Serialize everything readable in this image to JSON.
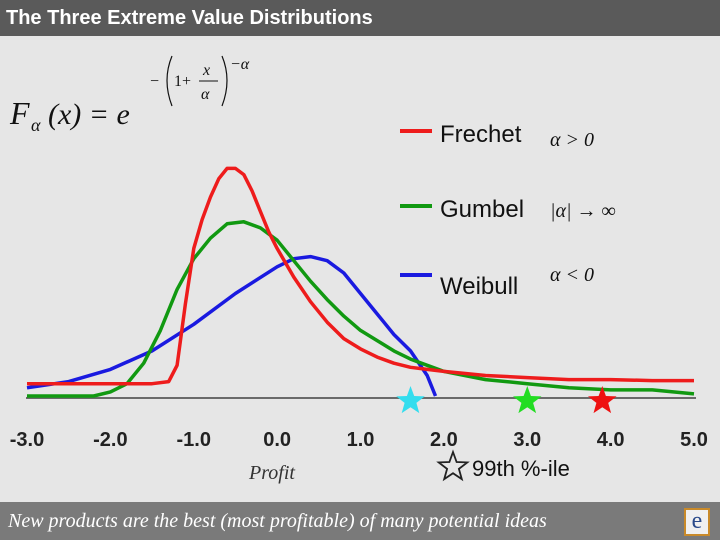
{
  "title": "The Three Extreme Value Distributions",
  "footer": {
    "text": "New products are the best (most profitable) of many potential ideas",
    "logo": "e"
  },
  "formula": {
    "lhs_main": "F",
    "lhs_sub": "α",
    "lhs_arg": "(x) = e",
    "exp_minus": "−",
    "exp_one_plus": "1+",
    "exp_frac_num": "x",
    "exp_frac_den": "α",
    "exp_power": "−α"
  },
  "colors": {
    "frechet": "#ee1c1c",
    "gumbel": "#119911",
    "weibull": "#1a1ae0",
    "star_weibull": "#33ddee",
    "star_gumbel": "#22dd22",
    "star_frechet": "#ee1111"
  },
  "chart_data": {
    "type": "line",
    "title": "The Three Extreme Value Distributions",
    "xlabel": "Profit",
    "ylabel": "",
    "xlim": [
      -3.2,
      5.2
    ],
    "x_ticks": [
      "-3.0",
      "-2.0",
      "-1.0",
      "0.0",
      "1.0",
      "2.0",
      "3.0",
      "4.0",
      "5.0"
    ],
    "grid": false,
    "legend": "right",
    "series": [
      {
        "name": "Frechet",
        "condition": "α > 0",
        "points": [
          [
            -3.0,
            0.06
          ],
          [
            -2.5,
            0.06
          ],
          [
            -2.0,
            0.06
          ],
          [
            -1.5,
            0.06
          ],
          [
            -1.3,
            0.07
          ],
          [
            -1.2,
            0.15
          ],
          [
            -1.1,
            0.45
          ],
          [
            -1.0,
            0.72
          ],
          [
            -0.9,
            0.86
          ],
          [
            -0.8,
            0.97
          ],
          [
            -0.7,
            1.06
          ],
          [
            -0.6,
            1.11
          ],
          [
            -0.5,
            1.11
          ],
          [
            -0.4,
            1.08
          ],
          [
            -0.3,
            1.0
          ],
          [
            -0.2,
            0.9
          ],
          [
            -0.1,
            0.8
          ],
          [
            0.0,
            0.72
          ],
          [
            0.2,
            0.58
          ],
          [
            0.4,
            0.46
          ],
          [
            0.6,
            0.36
          ],
          [
            0.8,
            0.28
          ],
          [
            1.0,
            0.23
          ],
          [
            1.2,
            0.19
          ],
          [
            1.4,
            0.16
          ],
          [
            1.6,
            0.14
          ],
          [
            1.8,
            0.13
          ],
          [
            2.0,
            0.12
          ],
          [
            2.5,
            0.1
          ],
          [
            3.0,
            0.09
          ],
          [
            3.5,
            0.08
          ],
          [
            4.0,
            0.08
          ],
          [
            4.5,
            0.075
          ],
          [
            5.0,
            0.075
          ]
        ]
      },
      {
        "name": "Gumbel",
        "condition": "|α| → ∞",
        "points": [
          [
            -3.0,
            0.0
          ],
          [
            -2.5,
            0.0
          ],
          [
            -2.2,
            0.0
          ],
          [
            -2.0,
            0.02
          ],
          [
            -1.8,
            0.06
          ],
          [
            -1.6,
            0.16
          ],
          [
            -1.4,
            0.32
          ],
          [
            -1.2,
            0.52
          ],
          [
            -1.0,
            0.67
          ],
          [
            -0.8,
            0.77
          ],
          [
            -0.6,
            0.84
          ],
          [
            -0.4,
            0.85
          ],
          [
            -0.2,
            0.82
          ],
          [
            0.0,
            0.76
          ],
          [
            0.2,
            0.66
          ],
          [
            0.4,
            0.56
          ],
          [
            0.6,
            0.47
          ],
          [
            0.8,
            0.39
          ],
          [
            1.0,
            0.32
          ],
          [
            1.2,
            0.27
          ],
          [
            1.4,
            0.22
          ],
          [
            1.6,
            0.18
          ],
          [
            1.8,
            0.15
          ],
          [
            2.0,
            0.12
          ],
          [
            2.5,
            0.08
          ],
          [
            3.0,
            0.06
          ],
          [
            3.5,
            0.04
          ],
          [
            4.0,
            0.03
          ],
          [
            4.5,
            0.03
          ],
          [
            5.0,
            0.01
          ]
        ]
      },
      {
        "name": "Weibull",
        "condition": "α < 0",
        "points": [
          [
            -3.0,
            0.04
          ],
          [
            -2.5,
            0.07
          ],
          [
            -2.0,
            0.13
          ],
          [
            -1.5,
            0.22
          ],
          [
            -1.0,
            0.35
          ],
          [
            -0.5,
            0.5
          ],
          [
            0.0,
            0.63
          ],
          [
            0.2,
            0.67
          ],
          [
            0.4,
            0.68
          ],
          [
            0.6,
            0.66
          ],
          [
            0.8,
            0.6
          ],
          [
            1.0,
            0.5
          ],
          [
            1.2,
            0.4
          ],
          [
            1.4,
            0.3
          ],
          [
            1.6,
            0.22
          ],
          [
            1.8,
            0.1
          ],
          [
            1.9,
            0.0
          ]
        ]
      }
    ],
    "annotations": {
      "star_label": "99th %-ile",
      "stars": [
        {
          "series": "Weibull",
          "x": 1.6
        },
        {
          "series": "Gumbel",
          "x": 3.0
        },
        {
          "series": "Frechet",
          "x": 3.9
        }
      ]
    }
  }
}
